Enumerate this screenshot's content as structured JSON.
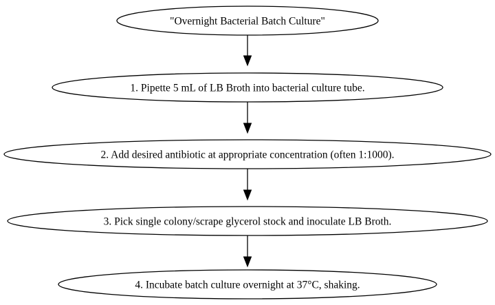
{
  "flowchart": {
    "nodes": [
      {
        "id": "title",
        "label": "\"Overnight Bacterial Batch Culture\""
      },
      {
        "id": "step1",
        "label": "1. Pipette 5 mL of LB Broth into bacterial culture tube."
      },
      {
        "id": "step2",
        "label": "2. Add desired antibiotic at appropriate concentration (often 1:1000)."
      },
      {
        "id": "step3",
        "label": "3. Pick single colony/scrape glycerol stock and inoculate LB Broth."
      },
      {
        "id": "step4",
        "label": "4. Incubate batch culture overnight at 37°C, shaking."
      }
    ],
    "edges": [
      {
        "from": "title",
        "to": "step1"
      },
      {
        "from": "step1",
        "to": "step2"
      },
      {
        "from": "step2",
        "to": "step3"
      },
      {
        "from": "step3",
        "to": "step4"
      }
    ]
  }
}
